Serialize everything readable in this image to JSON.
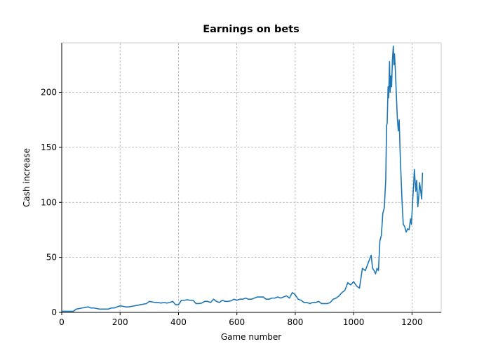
{
  "chart_data": {
    "type": "line",
    "title": "Earnings on bets",
    "x_label": "Game number",
    "y_label": "Cash increase",
    "x": [
      0,
      10,
      20,
      30,
      40,
      50,
      60,
      70,
      80,
      90,
      100,
      110,
      120,
      130,
      140,
      150,
      160,
      170,
      180,
      190,
      200,
      210,
      220,
      230,
      240,
      250,
      260,
      270,
      280,
      290,
      300,
      310,
      320,
      330,
      340,
      350,
      360,
      370,
      380,
      390,
      400,
      410,
      420,
      430,
      440,
      450,
      460,
      470,
      480,
      490,
      500,
      510,
      520,
      530,
      540,
      550,
      560,
      570,
      580,
      590,
      600,
      610,
      620,
      630,
      640,
      650,
      660,
      670,
      680,
      690,
      700,
      710,
      720,
      730,
      740,
      750,
      760,
      770,
      780,
      790,
      800,
      810,
      820,
      830,
      840,
      850,
      860,
      870,
      880,
      890,
      900,
      910,
      920,
      930,
      940,
      950,
      960,
      970,
      980,
      990,
      1000,
      1010,
      1020,
      1030,
      1040,
      1050,
      1060,
      1065,
      1070,
      1075,
      1080,
      1085,
      1090,
      1095,
      1100,
      1105,
      1110,
      1113,
      1115,
      1118,
      1120,
      1123,
      1125,
      1128,
      1130,
      1133,
      1136,
      1138,
      1140,
      1143,
      1146,
      1150,
      1153,
      1156,
      1160,
      1163,
      1166,
      1170,
      1175,
      1180,
      1185,
      1190,
      1195,
      1198,
      1200,
      1203,
      1206,
      1208,
      1210,
      1213,
      1216,
      1220,
      1223,
      1226,
      1230,
      1233,
      1236
    ],
    "series": [
      {
        "name": "Cash increase",
        "color": "#1f77b4",
        "values": [
          1,
          1,
          1,
          1,
          1,
          3,
          3.5,
          4,
          4.5,
          5,
          4,
          4,
          3.5,
          3,
          3,
          3,
          3,
          4,
          4,
          5,
          6,
          5.5,
          5,
          5,
          5.5,
          6,
          6.5,
          7,
          7.5,
          8,
          10,
          9.5,
          9,
          9,
          8.5,
          9,
          8.5,
          9,
          10,
          7,
          7,
          11,
          11,
          11.5,
          11,
          11,
          8,
          8,
          8.5,
          10,
          10,
          9,
          12,
          10,
          9,
          11,
          10,
          10,
          10.5,
          12,
          11,
          12,
          12,
          13,
          12,
          12,
          13,
          14,
          14,
          14,
          12,
          12,
          13,
          13,
          14,
          13,
          14,
          15,
          13,
          18,
          16,
          12,
          11,
          9,
          9,
          8,
          9,
          9,
          10,
          8,
          8,
          8,
          9,
          12,
          13,
          15,
          18,
          20,
          27,
          25,
          28,
          24,
          22,
          40,
          38,
          45,
          52,
          40,
          38,
          35,
          40,
          38,
          65,
          70,
          90,
          95,
          120,
          170,
          172,
          205,
          195,
          228,
          200,
          215,
          205,
          230,
          242,
          225,
          235,
          220,
          200,
          175,
          165,
          175,
          140,
          120,
          100,
          80,
          78,
          73,
          76,
          75,
          85,
          80,
          90,
          105,
          118,
          130,
          122,
          110,
          120,
          96,
          105,
          118,
          110,
          103,
          127
        ]
      }
    ],
    "xlim": [
      0,
      1300
    ],
    "ylim": [
      0,
      245
    ],
    "xticks": [
      0,
      200,
      400,
      600,
      800,
      1000,
      1200
    ],
    "yticks": [
      0,
      50,
      100,
      150,
      200
    ],
    "grid": true
  }
}
